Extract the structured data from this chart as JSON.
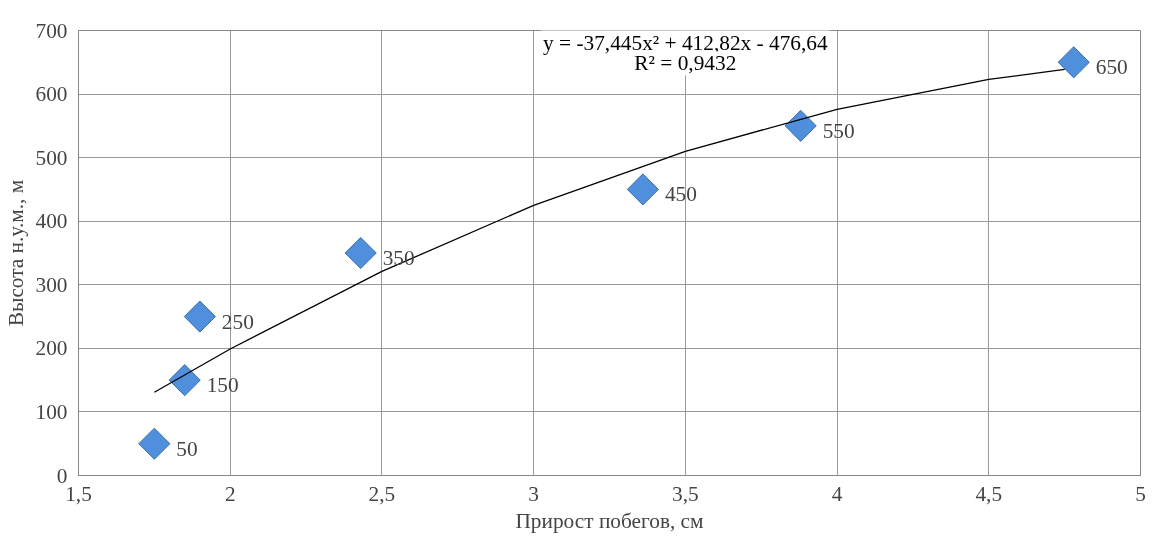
{
  "chart_data": {
    "type": "scatter",
    "xlabel": "Прирост побегов, см",
    "ylabel": "Высота н.у.м., м",
    "annotations": [
      "y = -37,445x² + 412,82x - 476,64",
      "R² = 0,9432"
    ],
    "series": [
      {
        "color": "#4f8fdc",
        "marker": "diamond",
        "x": [
          1.75,
          1.85,
          1.9,
          2.43,
          3.36,
          3.88,
          4.78
        ],
        "values": [
          50,
          150,
          250,
          350,
          450,
          550,
          650
        ],
        "value_labels": [
          "50",
          "150",
          "250",
          "350",
          "450",
          "550",
          "650"
        ]
      },
      {
        "type": "line",
        "color": "#000000",
        "marker": "none",
        "x": [
          1.75,
          2,
          2.5,
          3,
          3.5,
          4,
          4.5,
          4.75
        ],
        "values": [
          131,
          199,
          321,
          425,
          510,
          576,
          623,
          639
        ]
      }
    ],
    "grid": true,
    "xlim": [
      1.5,
      5
    ],
    "xticks": [
      {
        "value": 1.5,
        "label": "1,5"
      },
      2,
      {
        "value": 2.5,
        "label": "2,5"
      },
      3,
      {
        "value": 3.5,
        "label": "3,5"
      },
      4,
      {
        "value": 4.5,
        "label": "4,5"
      },
      5
    ],
    "ylim": [
      0,
      700
    ],
    "yticks": [
      0,
      100,
      200,
      300,
      400,
      500,
      600,
      700
    ]
  }
}
